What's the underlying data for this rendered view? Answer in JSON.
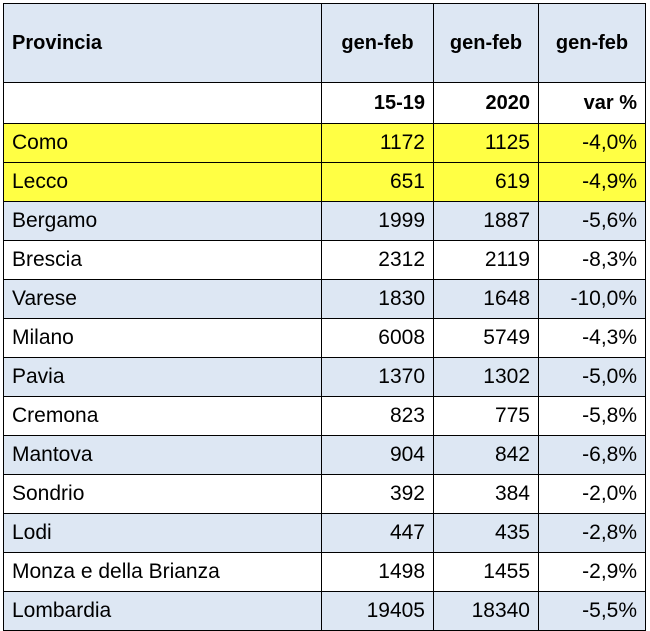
{
  "table": {
    "header": {
      "provincia": "Provincia",
      "col1": "gen-feb",
      "col2": "gen-feb",
      "col3": "gen-feb"
    },
    "subheader": {
      "provincia": "",
      "col1": "15-19",
      "col2": "2020",
      "col3": "var %"
    },
    "highlight_color": "#ffff44",
    "stripe_color": "#dde7f3",
    "rows": [
      {
        "name": "Como",
        "v1": "1172",
        "v2": "1125",
        "var": "-4,0%",
        "highlighted": true
      },
      {
        "name": "Lecco",
        "v1": "651",
        "v2": "619",
        "var": "-4,9%",
        "highlighted": true
      },
      {
        "name": "Bergamo",
        "v1": "1999",
        "v2": "1887",
        "var": "-5,6%"
      },
      {
        "name": "Brescia",
        "v1": "2312",
        "v2": "2119",
        "var": "-8,3%"
      },
      {
        "name": "Varese",
        "v1": "1830",
        "v2": "1648",
        "var": "-10,0%"
      },
      {
        "name": "Milano",
        "v1": "6008",
        "v2": "5749",
        "var": "-4,3%"
      },
      {
        "name": "Pavia",
        "v1": "1370",
        "v2": "1302",
        "var": "-5,0%"
      },
      {
        "name": "Cremona",
        "v1": "823",
        "v2": "775",
        "var": "-5,8%"
      },
      {
        "name": "Mantova",
        "v1": "904",
        "v2": "842",
        "var": "-6,8%"
      },
      {
        "name": "Sondrio",
        "v1": "392",
        "v2": "384",
        "var": "-2,0%"
      },
      {
        "name": "Lodi",
        "v1": "447",
        "v2": "435",
        "var": "-2,8%"
      },
      {
        "name": "Monza e della Brianza",
        "v1": "1498",
        "v2": "1455",
        "var": "-2,9%"
      },
      {
        "name": "Lombardia",
        "v1": "19405",
        "v2": "18340",
        "var": "-5,5%"
      }
    ]
  }
}
